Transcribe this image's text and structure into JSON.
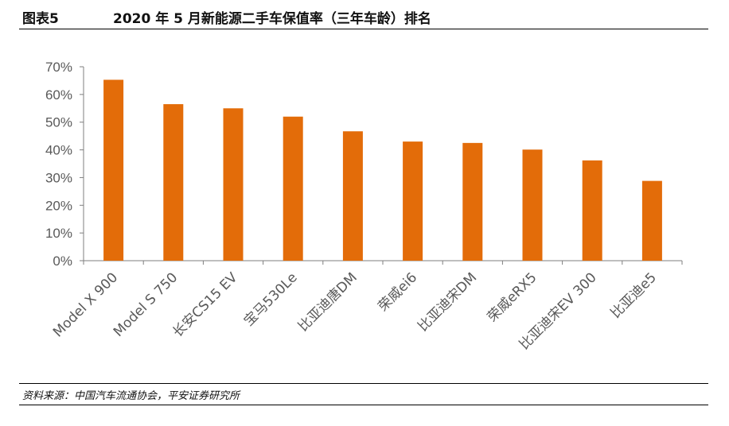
{
  "header": {
    "figure_label": "图表5",
    "title": "2020 年 5 月新能源二手车保值率（三年车龄）排名"
  },
  "source": "资料来源：中国汽车流通协会，平安证券研究所",
  "chart_data": {
    "type": "bar",
    "title": "",
    "xlabel": "",
    "ylabel": "",
    "ylim": [
      0,
      70
    ],
    "y_unit": "%",
    "yticks": [
      "0%",
      "10%",
      "20%",
      "30%",
      "40%",
      "50%",
      "60%",
      "70%"
    ],
    "grid": false,
    "bar_color": "#E36C09",
    "categories": [
      "Model X 900",
      "Model S 750",
      "长安CS15 EV",
      "宝马530Le",
      "比亚迪唐DM",
      "荣威ei6",
      "比亚迪宋DM",
      "荣威eRX5",
      "比亚迪宋EV 300",
      "比亚迪e5"
    ],
    "values": [
      65.3,
      56.5,
      55.0,
      52.0,
      46.7,
      43.0,
      42.5,
      40.1,
      36.2,
      28.8
    ]
  }
}
